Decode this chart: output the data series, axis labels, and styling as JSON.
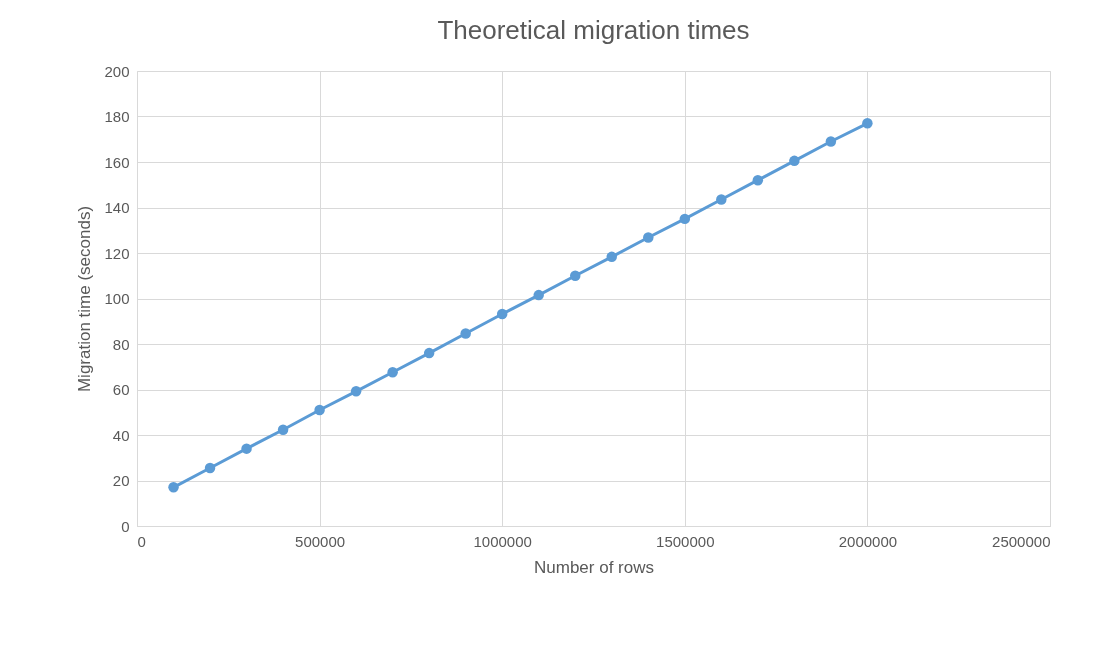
{
  "chart_data": {
    "type": "line",
    "title": "Theoretical migration times",
    "xlabel": "Number of rows",
    "ylabel": "Migration time (seconds)",
    "x": [
      100000,
      200000,
      300000,
      400000,
      500000,
      600000,
      700000,
      800000,
      900000,
      1000000,
      1100000,
      1200000,
      1300000,
      1400000,
      1500000,
      1600000,
      1700000,
      1800000,
      1900000,
      2000000
    ],
    "series": [
      {
        "color": "#5b9bd5",
        "values": [
          17,
          25.5,
          34,
          42.3,
          51,
          59.2,
          67.6,
          76,
          84.6,
          93.2,
          101.5,
          110,
          118.3,
          126.8,
          135,
          143.5,
          152,
          160.5,
          169,
          177
        ]
      }
    ],
    "xlim": [
      0,
      2500000
    ],
    "xticks": [
      0,
      500000,
      1000000,
      1500000,
      2000000,
      2500000
    ],
    "ylim": [
      0,
      200
    ],
    "yticks": [
      0,
      20,
      40,
      60,
      80,
      100,
      120,
      140,
      160,
      180,
      200
    ],
    "grid": true,
    "marker": "circle",
    "line_style": "solid"
  }
}
